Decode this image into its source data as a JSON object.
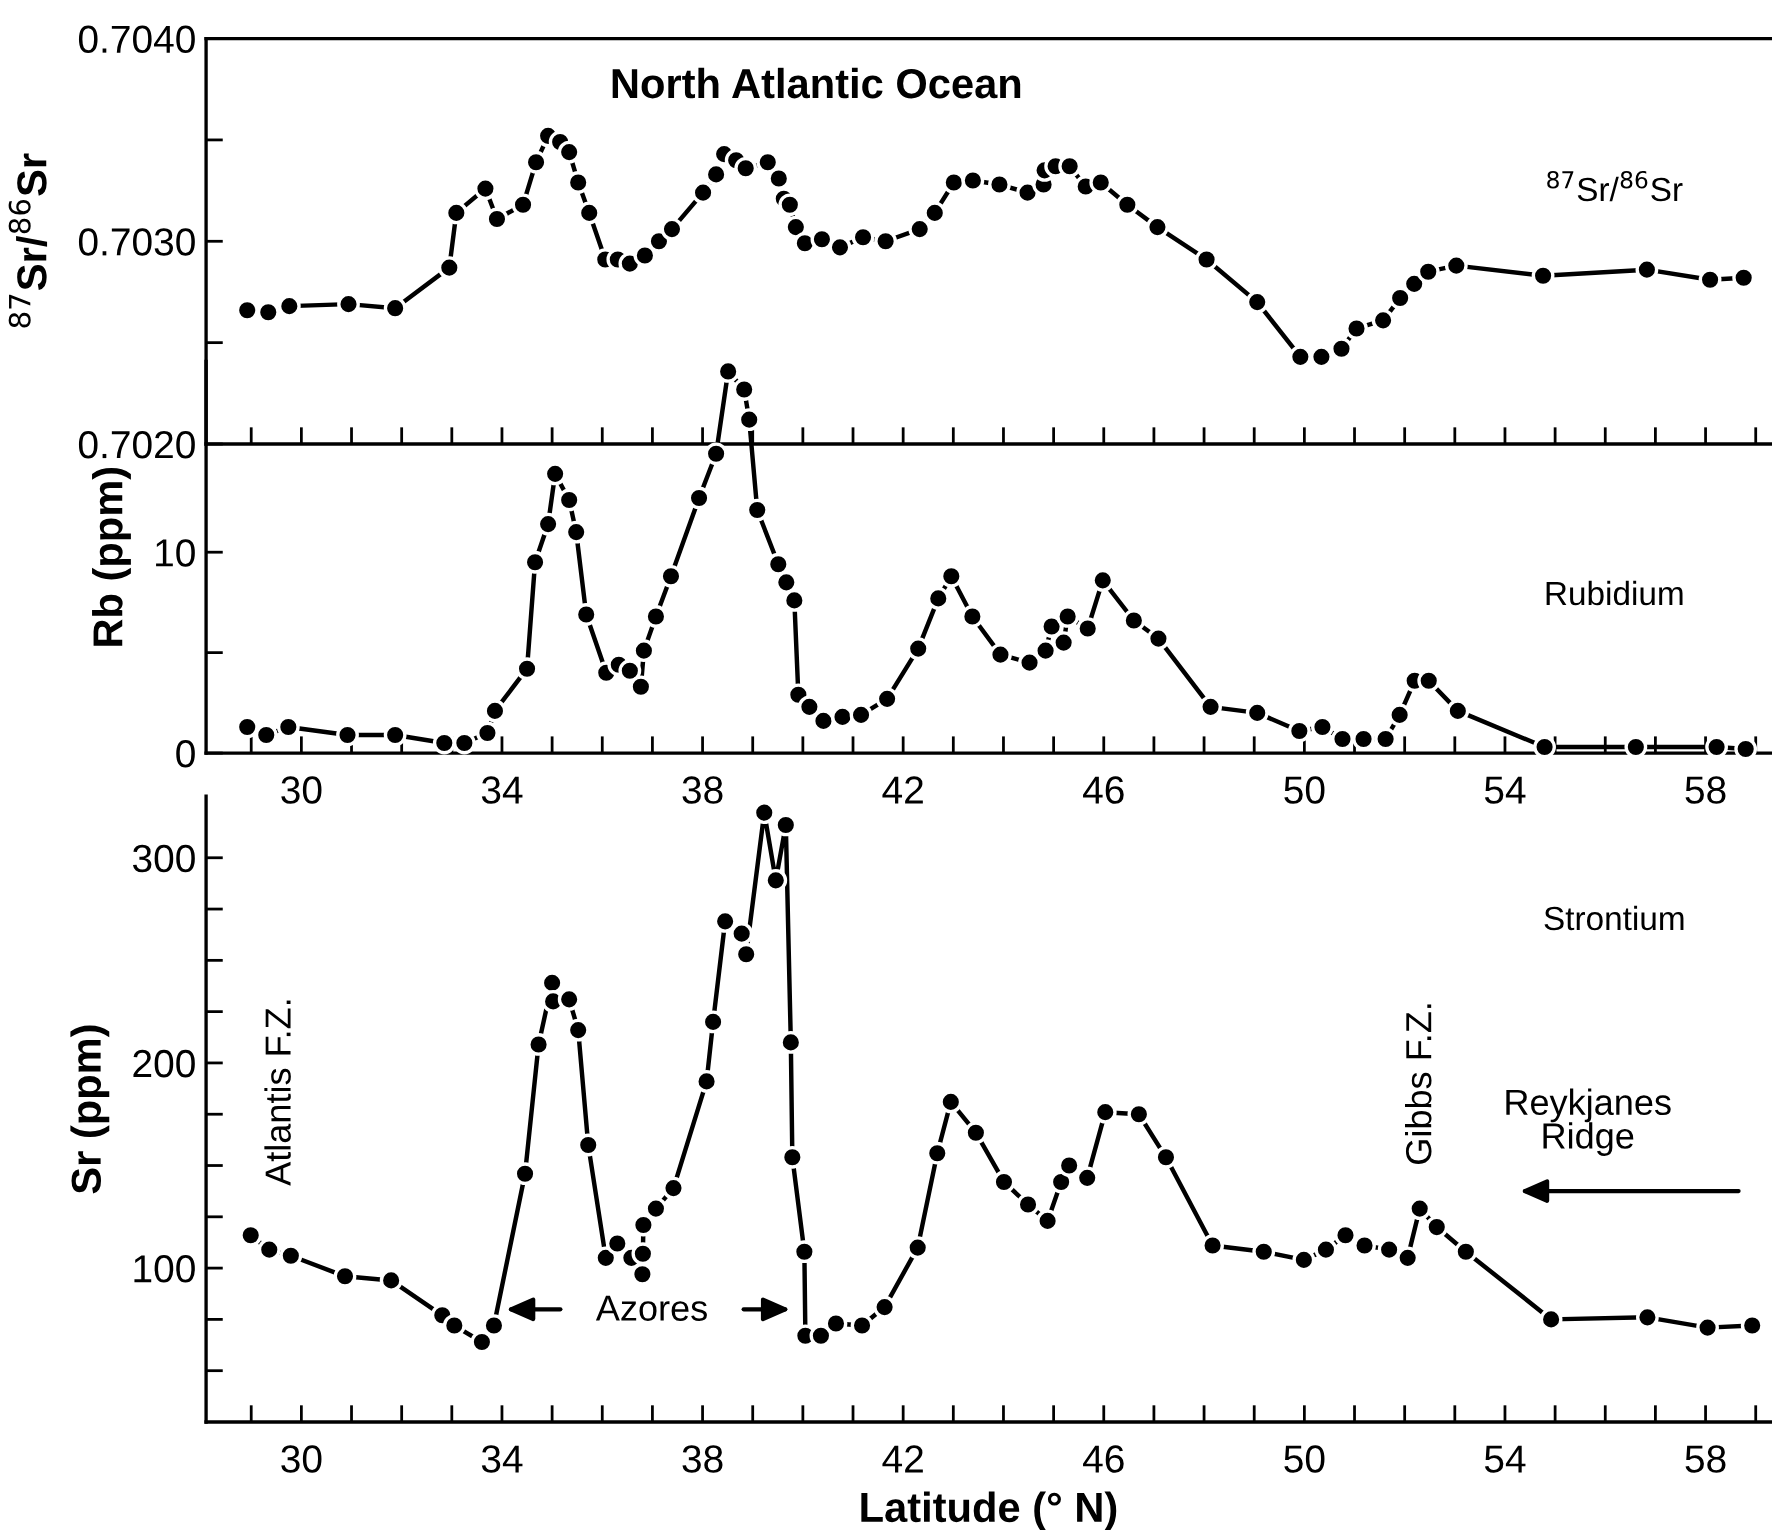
{
  "chart_data": [
    {
      "type": "line",
      "title": "North Atlantic Ocean",
      "ylabel": "$^{87}$Sr/$^{86}$Sr",
      "tick_labels": "y",
      "marker": "circle",
      "line_style": "solid",
      "xlim": [
        28.1,
        59.3
      ],
      "xticks": [
        {
          "value": 29,
          "label": null
        },
        {
          "value": 30,
          "label": null
        },
        {
          "value": 31,
          "label": null
        },
        {
          "value": 32,
          "label": null
        },
        {
          "value": 33,
          "label": null
        },
        {
          "value": 34,
          "label": null
        },
        {
          "value": 35,
          "label": null
        },
        {
          "value": 36,
          "label": null
        },
        {
          "value": 37,
          "label": null
        },
        {
          "value": 38,
          "label": null
        },
        {
          "value": 39,
          "label": null
        },
        {
          "value": 40,
          "label": null
        },
        {
          "value": 41,
          "label": null
        },
        {
          "value": 42,
          "label": null
        },
        {
          "value": 43,
          "label": null
        },
        {
          "value": 44,
          "label": null
        },
        {
          "value": 45,
          "label": null
        },
        {
          "value": 46,
          "label": null
        },
        {
          "value": 47,
          "label": null
        },
        {
          "value": 48,
          "label": null
        },
        {
          "value": 49,
          "label": null
        },
        {
          "value": 50,
          "label": null
        },
        {
          "value": 51,
          "label": null
        },
        {
          "value": 52,
          "label": null
        },
        {
          "value": 53,
          "label": null
        },
        {
          "value": 54,
          "label": null
        },
        {
          "value": 55,
          "label": null
        },
        {
          "value": 56,
          "label": null
        },
        {
          "value": 57,
          "label": null
        },
        {
          "value": 58,
          "label": null
        },
        {
          "value": 59,
          "label": null
        }
      ],
      "ylim": [
        0.702,
        0.704
      ],
      "yticks": [
        {
          "value": 0.702,
          "label": "0.7020"
        },
        {
          "value": 0.7025,
          "label": null
        },
        {
          "value": 0.703,
          "label": "0.7030"
        },
        {
          "value": 0.7035,
          "label": null
        },
        {
          "value": 0.704,
          "label": "0.7040"
        }
      ],
      "x": [
        28.92,
        29.34,
        29.76,
        30.94,
        31.87,
        32.95,
        33.09,
        33.67,
        33.9,
        34.42,
        34.68,
        34.92,
        35.16,
        35.34,
        35.52,
        35.74,
        36.06,
        36.31,
        36.55,
        36.85,
        37.13,
        37.39,
        38.01,
        38.27,
        38.43,
        38.67,
        38.86,
        39.3,
        39.52,
        39.62,
        39.74,
        39.86,
        40.04,
        40.38,
        40.74,
        41.2,
        41.65,
        42.33,
        42.63,
        43.01,
        43.39,
        43.92,
        44.48,
        44.8,
        44.82,
        45.04,
        45.32,
        45.64,
        45.94,
        46.47,
        47.07,
        48.05,
        49.06,
        49.92,
        50.34,
        50.74,
        51.04,
        51.57,
        51.91,
        52.19,
        52.47,
        53.03,
        54.76,
        56.83,
        58.09,
        58.76
      ],
      "series": [
        {
          "name": "$^{87}$Sr/$^{86}$Sr",
          "color": "#000000",
          "values": [
            0.70266,
            0.70265,
            0.70268,
            0.70269,
            0.70267,
            0.70287,
            0.70314,
            0.70326,
            0.70311,
            0.70318,
            0.70339,
            0.70352,
            0.70349,
            0.70344,
            0.70329,
            0.70314,
            0.70291,
            0.70291,
            0.70289,
            0.70293,
            0.703,
            0.70306,
            0.70324,
            0.70333,
            0.70343,
            0.7034,
            0.70336,
            0.70339,
            0.70331,
            0.70321,
            0.70318,
            0.70307,
            0.70299,
            0.70301,
            0.70297,
            0.70302,
            0.703,
            0.70306,
            0.70314,
            0.70329,
            0.7033,
            0.70328,
            0.70324,
            0.70328,
            0.70335,
            0.70337,
            0.70337,
            0.70327,
            0.70329,
            0.70318,
            0.70307,
            0.70291,
            0.7027,
            0.70243,
            0.70243,
            0.70247,
            0.70257,
            0.70261,
            0.70272,
            0.70279,
            0.70285,
            0.70288,
            0.70283,
            0.70286,
            0.70281,
            0.70282
          ]
        }
      ]
    },
    {
      "type": "line",
      "ylabel": "Rb (ppm)",
      "marker": "circle",
      "line_style": "solid",
      "xlim": [
        28.1,
        59.3
      ],
      "xticks": [
        {
          "value": 29,
          "label": null
        },
        30,
        {
          "value": 31,
          "label": null
        },
        {
          "value": 32,
          "label": null
        },
        {
          "value": 33,
          "label": null
        },
        34,
        {
          "value": 35,
          "label": null
        },
        {
          "value": 36,
          "label": null
        },
        {
          "value": 37,
          "label": null
        },
        38,
        {
          "value": 39,
          "label": null
        },
        {
          "value": 40,
          "label": null
        },
        {
          "value": 41,
          "label": null
        },
        42,
        {
          "value": 43,
          "label": null
        },
        {
          "value": 44,
          "label": null
        },
        {
          "value": 45,
          "label": null
        },
        46,
        {
          "value": 47,
          "label": null
        },
        {
          "value": 48,
          "label": null
        },
        {
          "value": 49,
          "label": null
        },
        50,
        {
          "value": 51,
          "label": null
        },
        {
          "value": 52,
          "label": null
        },
        {
          "value": 53,
          "label": null
        },
        54,
        {
          "value": 55,
          "label": null
        },
        {
          "value": 56,
          "label": null
        },
        {
          "value": 57,
          "label": null
        },
        58,
        {
          "value": 59,
          "label": null
        }
      ],
      "ylim": [
        0,
        19.5
      ],
      "yticks": [
        0,
        {
          "value": 5,
          "label": null
        },
        10
      ],
      "x": [
        28.92,
        29.3,
        29.74,
        30.92,
        31.87,
        32.85,
        33.25,
        33.71,
        33.86,
        34.5,
        34.66,
        34.92,
        35.06,
        35.34,
        35.48,
        35.68,
        36.08,
        36.33,
        36.55,
        36.77,
        36.83,
        37.07,
        37.37,
        37.93,
        38.27,
        38.51,
        38.83,
        38.93,
        39.09,
        39.51,
        39.67,
        39.83,
        39.91,
        40.13,
        40.41,
        40.79,
        41.16,
        41.68,
        42.3,
        42.7,
        42.96,
        43.38,
        43.94,
        44.52,
        44.84,
        44.96,
        45.2,
        45.28,
        45.68,
        45.98,
        46.6,
        47.09,
        48.13,
        49.06,
        49.9,
        50.36,
        50.76,
        51.18,
        51.62,
        51.9,
        52.2,
        52.48,
        53.06,
        54.79,
        56.61,
        58.22,
        58.8
      ],
      "series": [
        {
          "name": "Rubidium",
          "color": "#000000",
          "values": [
            1.3,
            0.9,
            1.3,
            0.9,
            0.9,
            0.5,
            0.5,
            1.0,
            2.1,
            4.2,
            9.5,
            11.4,
            13.9,
            12.6,
            11.0,
            6.9,
            4.0,
            4.4,
            4.1,
            3.3,
            5.1,
            6.8,
            8.8,
            12.7,
            14.9,
            19.0,
            18.1,
            16.6,
            12.1,
            9.4,
            8.5,
            7.6,
            2.9,
            2.3,
            1.6,
            1.8,
            1.9,
            2.7,
            5.2,
            7.7,
            8.8,
            6.8,
            4.9,
            4.5,
            5.1,
            6.3,
            5.5,
            6.8,
            6.2,
            8.6,
            6.6,
            5.7,
            2.3,
            2.0,
            1.1,
            1.3,
            0.7,
            0.7,
            0.7,
            1.9,
            3.6,
            3.6,
            2.1,
            0.3,
            0.3,
            0.3,
            0.2
          ]
        }
      ]
    },
    {
      "type": "line",
      "ylabel": "Sr (ppm)",
      "xlabel": "Latitude (° N)",
      "marker": "circle",
      "line_style": "solid",
      "xlim": [
        28.1,
        59.3
      ],
      "xticks": [
        {
          "value": 29,
          "label": null
        },
        30,
        {
          "value": 31,
          "label": null
        },
        {
          "value": 32,
          "label": null
        },
        {
          "value": 33,
          "label": null
        },
        34,
        {
          "value": 35,
          "label": null
        },
        {
          "value": 36,
          "label": null
        },
        {
          "value": 37,
          "label": null
        },
        38,
        {
          "value": 39,
          "label": null
        },
        {
          "value": 40,
          "label": null
        },
        {
          "value": 41,
          "label": null
        },
        42,
        {
          "value": 43,
          "label": null
        },
        {
          "value": 44,
          "label": null
        },
        {
          "value": 45,
          "label": null
        },
        46,
        {
          "value": 47,
          "label": null
        },
        {
          "value": 48,
          "label": null
        },
        {
          "value": 49,
          "label": null
        },
        50,
        {
          "value": 51,
          "label": null
        },
        {
          "value": 52,
          "label": null
        },
        {
          "value": 53,
          "label": null
        },
        54,
        {
          "value": 55,
          "label": null
        },
        {
          "value": 56,
          "label": null
        },
        {
          "value": 57,
          "label": null
        },
        58,
        {
          "value": 59,
          "label": null
        }
      ],
      "ylim": [
        25,
        330
      ],
      "yticks": [
        {
          "value": 50,
          "label": null
        },
        {
          "value": 75,
          "label": null
        },
        100,
        {
          "value": 125,
          "label": null
        },
        {
          "value": 150,
          "label": null
        },
        {
          "value": 175,
          "label": null
        },
        200,
        {
          "value": 225,
          "label": null
        },
        {
          "value": 250,
          "label": null
        },
        {
          "value": 275,
          "label": null
        },
        300
      ],
      "x": [
        28.99,
        29.36,
        29.79,
        30.87,
        31.79,
        32.81,
        33.05,
        33.6,
        33.84,
        34.46,
        34.73,
        35.0,
        35.02,
        35.34,
        35.52,
        35.72,
        36.07,
        36.3,
        36.58,
        36.8,
        36.81,
        36.82,
        37.07,
        37.42,
        38.08,
        38.21,
        38.45,
        38.78,
        38.87,
        39.23,
        39.46,
        39.66,
        39.76,
        39.79,
        40.03,
        40.05,
        40.36,
        40.66,
        41.18,
        41.63,
        42.29,
        42.68,
        42.95,
        43.45,
        44.01,
        44.49,
        44.88,
        45.15,
        45.31,
        45.67,
        46.03,
        46.7,
        47.24,
        48.17,
        49.19,
        49.99,
        50.43,
        50.82,
        51.2,
        51.69,
        52.06,
        52.3,
        52.64,
        53.22,
        54.92,
        56.84,
        58.04,
        58.93
      ],
      "series": [
        {
          "name": "Strontium",
          "color": "#000000",
          "values": [
            116,
            109,
            106,
            96,
            94,
            77,
            72,
            64,
            72,
            146,
            209,
            239,
            230,
            231,
            216,
            160,
            105,
            112,
            105,
            97,
            107,
            121,
            129,
            139,
            191,
            220,
            269,
            263,
            253,
            322,
            289,
            316,
            210,
            154,
            108,
            67,
            67,
            73,
            72,
            81,
            110,
            156,
            181,
            166,
            142,
            131,
            123,
            142,
            150,
            144,
            176,
            175,
            154,
            111,
            108,
            104,
            109,
            116,
            111,
            109,
            105,
            129,
            120,
            108,
            75,
            76,
            71,
            72
          ]
        }
      ],
      "annotations": [
        "Atlantis F.Z.",
        "Gibbs F.Z.",
        "Azores",
        "Reykjanes\nRidge"
      ]
    }
  ]
}
